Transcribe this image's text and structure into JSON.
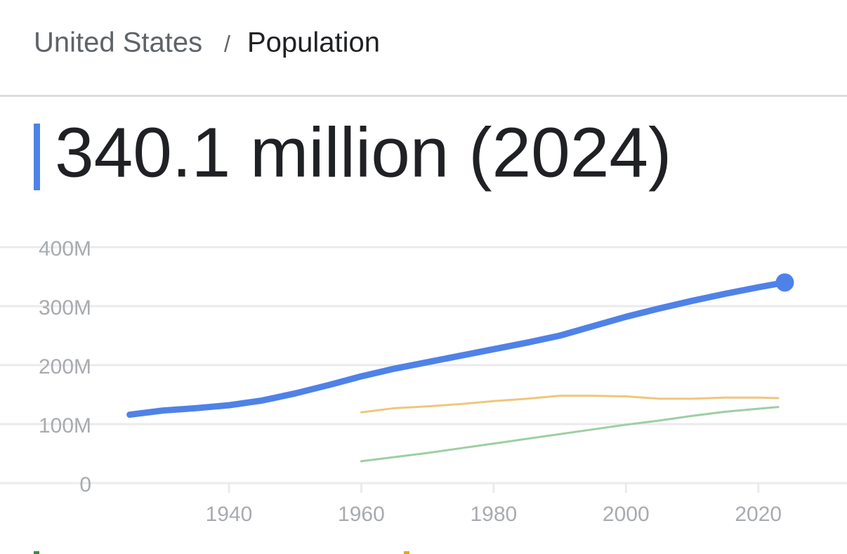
{
  "header": {
    "country": "United States",
    "separator": "/",
    "topic": "Population",
    "headline": "340.1 million (2024)"
  },
  "chart_data": {
    "type": "line",
    "xlim": [
      1905.4,
      2033.4
    ],
    "xticks": [
      1940,
      1960,
      1980,
      2000,
      2020
    ],
    "ylim": [
      0,
      400
    ],
    "yticks": [
      0,
      {
        "value": 100,
        "label": "100M"
      },
      {
        "value": 200,
        "label": "200M"
      },
      {
        "value": 300,
        "label": "300M"
      },
      {
        "value": 400,
        "label": "400M"
      }
    ],
    "grid": true,
    "series": [
      {
        "color": "#4f82e8",
        "x": [
          1925,
          1930,
          1935,
          1940,
          1945,
          1950,
          1955,
          1960,
          1965,
          1970,
          1975,
          1980,
          1985,
          1990,
          1995,
          2000,
          2005,
          2010,
          2015,
          2020,
          2024
        ],
        "values": [
          116,
          123,
          127,
          132,
          140,
          152,
          166,
          181,
          194,
          205,
          216,
          227,
          238,
          250,
          266,
          282,
          296,
          309,
          321,
          332,
          340.1
        ]
      },
      {
        "color": "#f0c67c",
        "x": [
          1960,
          1965,
          1970,
          1975,
          1980,
          1985,
          1990,
          1995,
          2000,
          2005,
          2010,
          2015,
          2020,
          2023
        ],
        "values": [
          120,
          127,
          130,
          134,
          139,
          143,
          148,
          148,
          147,
          143,
          143,
          145,
          145,
          144
        ]
      },
      {
        "color": "#9dcfa3",
        "x": [
          1960,
          1965,
          1970,
          1975,
          1980,
          1985,
          1990,
          1995,
          2000,
          2005,
          2010,
          2015,
          2020,
          2023
        ],
        "values": [
          37,
          44,
          51,
          59,
          67,
          75,
          83,
          91,
          99,
          106,
          114,
          121,
          126,
          129
        ]
      }
    ]
  }
}
